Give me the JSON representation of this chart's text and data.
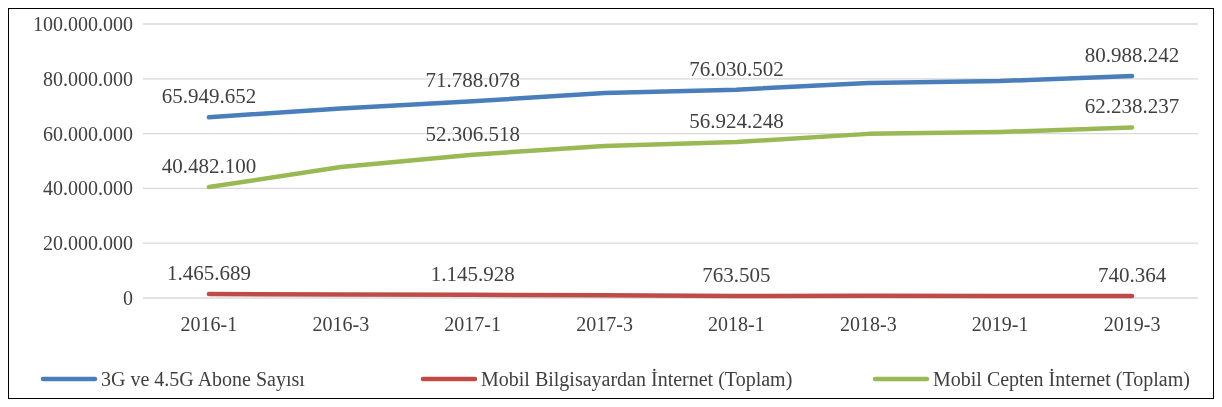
{
  "chart_data": {
    "type": "line",
    "categories": [
      "2016-1",
      "2016-3",
      "2017-1",
      "2017-3",
      "2018-1",
      "2018-3",
      "2019-1",
      "2019-3"
    ],
    "ylim": [
      0,
      100000000
    ],
    "yticks": [
      {
        "value": 0,
        "label": "0"
      },
      {
        "value": 20000000,
        "label": "20.000.000"
      },
      {
        "value": 40000000,
        "label": "40.000.000"
      },
      {
        "value": 60000000,
        "label": "60.000.000"
      },
      {
        "value": 80000000,
        "label": "80.000.000"
      },
      {
        "value": 100000000,
        "label": "100.000.000"
      }
    ],
    "grid": "y",
    "legend": "bottom",
    "marker": "none",
    "line_style": "solid",
    "series": [
      {
        "name": "3G ve 4.5G Abone Sayısı",
        "color": "#4a7ebb",
        "values": [
          65949652,
          69200000,
          71788078,
          74800000,
          76030502,
          78500000,
          79200000,
          80988242
        ],
        "value_labels": [
          "65.949.652",
          null,
          "71.788.078",
          null,
          "76.030.502",
          null,
          null,
          "80.988.242"
        ]
      },
      {
        "name": "Mobil Bilgisayardan İnternet (Toplam)",
        "color": "#be4b48",
        "values": [
          1465689,
          1300000,
          1145928,
          1000000,
          763505,
          800000,
          700000,
          740364
        ],
        "value_labels": [
          "1.465.689",
          null,
          "1.145.928",
          null,
          "763.505",
          null,
          null,
          "740.364"
        ]
      },
      {
        "name": "Mobil Cepten İnternet (Toplam)",
        "color": "#98b954",
        "values": [
          40482100,
          47800000,
          52306518,
          55500000,
          56924248,
          59900000,
          60600000,
          62238237
        ],
        "value_labels": [
          "40.482.100",
          null,
          "52.306.518",
          null,
          "56.924.248",
          null,
          null,
          "62.238.237"
        ]
      }
    ]
  }
}
